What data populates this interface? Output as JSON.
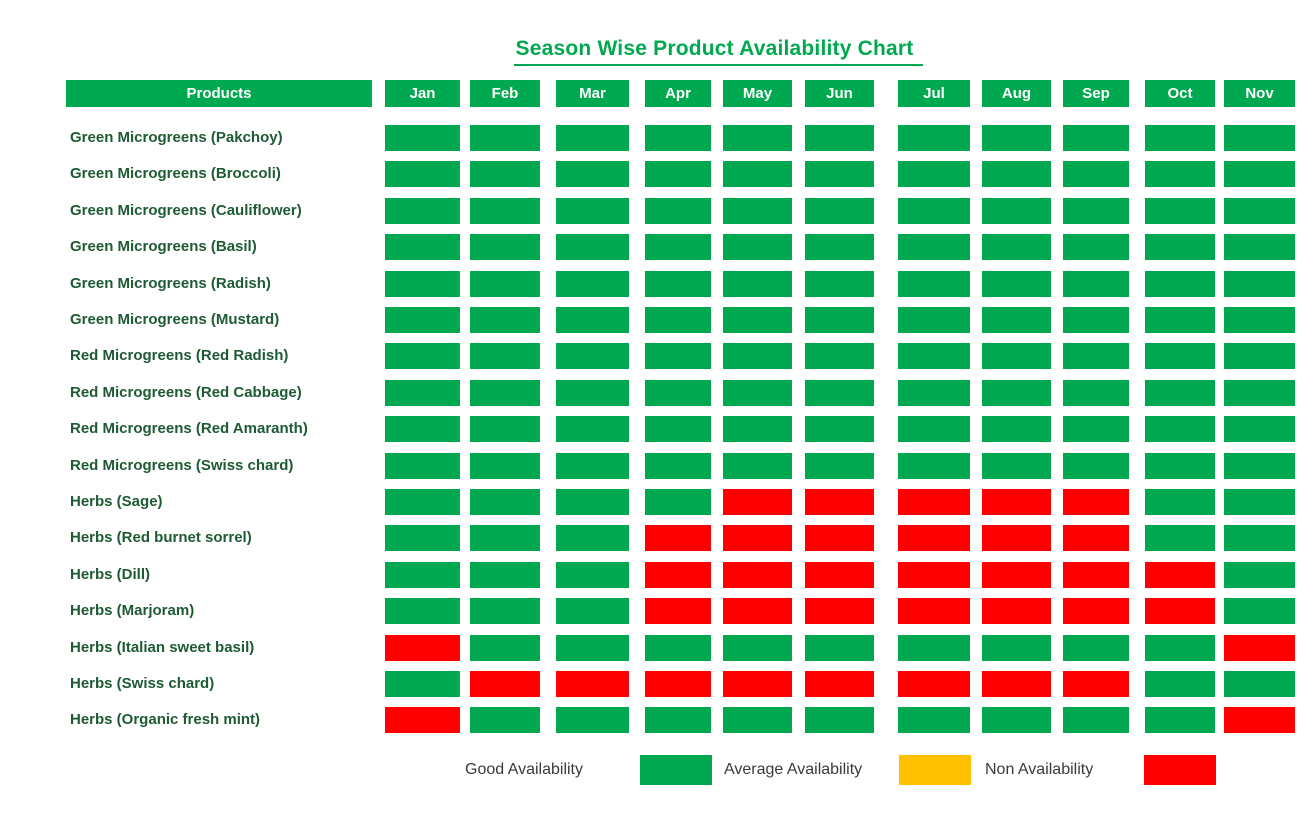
{
  "title": "Season Wise Product Availability Chart",
  "colors": {
    "good": "#00A94F",
    "average": "#FFC000",
    "non": "#FF0000",
    "header_bg": "#00A94F",
    "title_text": "#00A94F",
    "label_text": "#1E5B34",
    "legend_text": "#3A3A3A"
  },
  "table": {
    "products_header": "Products",
    "months": [
      "Jan",
      "Feb",
      "Mar",
      "Apr",
      "May",
      "Jun",
      "Jul",
      "Aug",
      "Sep",
      "Oct",
      "Nov"
    ]
  },
  "chart_data": {
    "type": "heatmap",
    "title": "Season Wise Product Availability Chart",
    "x_categories": [
      "Jan",
      "Feb",
      "Mar",
      "Apr",
      "May",
      "Jun",
      "Jul",
      "Aug",
      "Sep",
      "Oct",
      "Nov"
    ],
    "value_legend": {
      "G": "Good Availability",
      "A": "Average Availability",
      "R": "Non Availability"
    },
    "color_map": {
      "G": "#00A94F",
      "A": "#FFC000",
      "R": "#FF0000"
    },
    "rows": [
      {
        "product": "Green Microgreens (Pakchoy)",
        "availability": [
          "G",
          "G",
          "G",
          "G",
          "G",
          "G",
          "G",
          "G",
          "G",
          "G",
          "G"
        ]
      },
      {
        "product": "Green Microgreens (Broccoli)",
        "availability": [
          "G",
          "G",
          "G",
          "G",
          "G",
          "G",
          "G",
          "G",
          "G",
          "G",
          "G"
        ]
      },
      {
        "product": "Green Microgreens (Cauliflower)",
        "availability": [
          "G",
          "G",
          "G",
          "G",
          "G",
          "G",
          "G",
          "G",
          "G",
          "G",
          "G"
        ]
      },
      {
        "product": "Green Microgreens (Basil)",
        "availability": [
          "G",
          "G",
          "G",
          "G",
          "G",
          "G",
          "G",
          "G",
          "G",
          "G",
          "G"
        ]
      },
      {
        "product": "Green Microgreens (Radish)",
        "availability": [
          "G",
          "G",
          "G",
          "G",
          "G",
          "G",
          "G",
          "G",
          "G",
          "G",
          "G"
        ]
      },
      {
        "product": "Green Microgreens (Mustard)",
        "availability": [
          "G",
          "G",
          "G",
          "G",
          "G",
          "G",
          "G",
          "G",
          "G",
          "G",
          "G"
        ]
      },
      {
        "product": "Red Microgreens (Red Radish)",
        "availability": [
          "G",
          "G",
          "G",
          "G",
          "G",
          "G",
          "G",
          "G",
          "G",
          "G",
          "G"
        ]
      },
      {
        "product": "Red Microgreens (Red Cabbage)",
        "availability": [
          "G",
          "G",
          "G",
          "G",
          "G",
          "G",
          "G",
          "G",
          "G",
          "G",
          "G"
        ]
      },
      {
        "product": "Red Microgreens (Red Amaranth)",
        "availability": [
          "G",
          "G",
          "G",
          "G",
          "G",
          "G",
          "G",
          "G",
          "G",
          "G",
          "G"
        ]
      },
      {
        "product": "Red Microgreens (Swiss chard)",
        "availability": [
          "G",
          "G",
          "G",
          "G",
          "G",
          "G",
          "G",
          "G",
          "G",
          "G",
          "G"
        ]
      },
      {
        "product": "Herbs (Sage)",
        "availability": [
          "G",
          "G",
          "G",
          "G",
          "R",
          "R",
          "R",
          "R",
          "R",
          "G",
          "G"
        ]
      },
      {
        "product": "Herbs (Red burnet sorrel)",
        "availability": [
          "G",
          "G",
          "G",
          "R",
          "R",
          "R",
          "R",
          "R",
          "R",
          "G",
          "G"
        ]
      },
      {
        "product": "Herbs (Dill)",
        "availability": [
          "G",
          "G",
          "G",
          "R",
          "R",
          "R",
          "R",
          "R",
          "R",
          "R",
          "G"
        ]
      },
      {
        "product": "Herbs (Marjoram)",
        "availability": [
          "G",
          "G",
          "G",
          "R",
          "R",
          "R",
          "R",
          "R",
          "R",
          "R",
          "G"
        ]
      },
      {
        "product": "Herbs (Italian sweet basil)",
        "availability": [
          "R",
          "G",
          "G",
          "G",
          "G",
          "G",
          "G",
          "G",
          "G",
          "G",
          "R"
        ]
      },
      {
        "product": "Herbs (Swiss chard)",
        "availability": [
          "G",
          "R",
          "R",
          "R",
          "R",
          "R",
          "R",
          "R",
          "R",
          "G",
          "G"
        ]
      },
      {
        "product": "Herbs (Organic fresh mint)",
        "availability": [
          "R",
          "G",
          "G",
          "G",
          "G",
          "G",
          "G",
          "G",
          "G",
          "G",
          "R"
        ]
      }
    ]
  },
  "legend": [
    {
      "label": "Good Availability",
      "color": "#00A94F"
    },
    {
      "label": "Average Availability",
      "color": "#FFC000"
    },
    {
      "label": "Non Availability",
      "color": "#FF0000"
    }
  ]
}
